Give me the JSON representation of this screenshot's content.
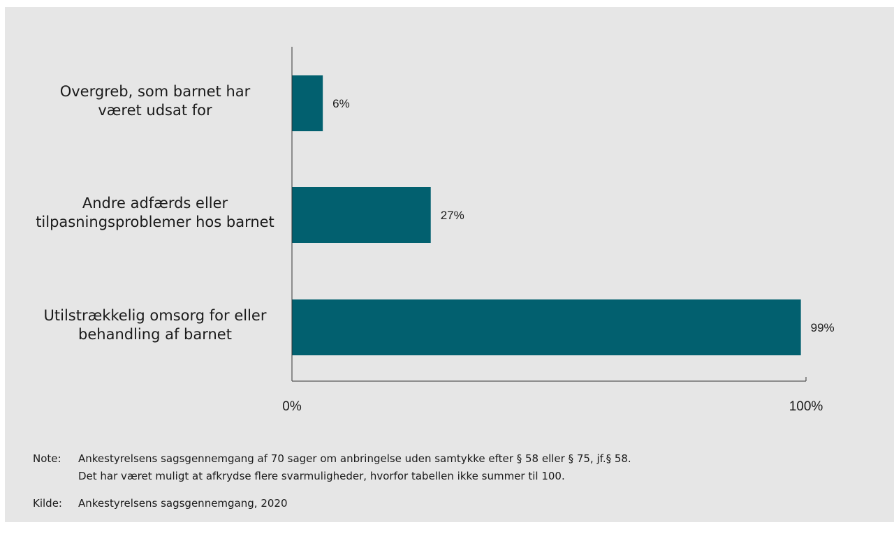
{
  "chart_data": {
    "type": "bar",
    "orientation": "horizontal",
    "categories": [
      "Overgreb, som barnet har være udsat for",
      "Andre adfærds eller tilpasningsproblemer hos barnet",
      "Utilstrækkelig omsorg for eller behandling af barnet"
    ],
    "category_lines": [
      [
        "Overgreb, som barnet har",
        "været udsat for"
      ],
      [
        "Andre adfærds eller",
        "tilpasningsproblemer hos barnet"
      ],
      [
        "Utilstrækkelig omsorg for eller",
        "behandling af barnet"
      ]
    ],
    "values": [
      6,
      27,
      99
    ],
    "value_labels": [
      "6%",
      "27%",
      "99%"
    ],
    "xlim": [
      0,
      100
    ],
    "x_ticks": [
      0,
      100
    ],
    "x_tick_labels": [
      "0%",
      "100%"
    ],
    "bar_color": "#02606f",
    "grid": false,
    "legend": "none"
  },
  "note": {
    "label": "Note:",
    "line1": "Ankestyrelsens sagsgennemgang af 70 sager om anbringelse uden samtykke efter § 58 eller § 75, jf.§ 58.",
    "line2": "Det har været muligt at afkrydse flere svarmuligheder, hvorfor tabellen ikke summer til 100."
  },
  "source": {
    "label": "Kilde:",
    "text": "Ankestyrelsens sagsgennemgang, 2020"
  },
  "colors": {
    "background": "#e6e6e6",
    "bar": "#02606f"
  }
}
